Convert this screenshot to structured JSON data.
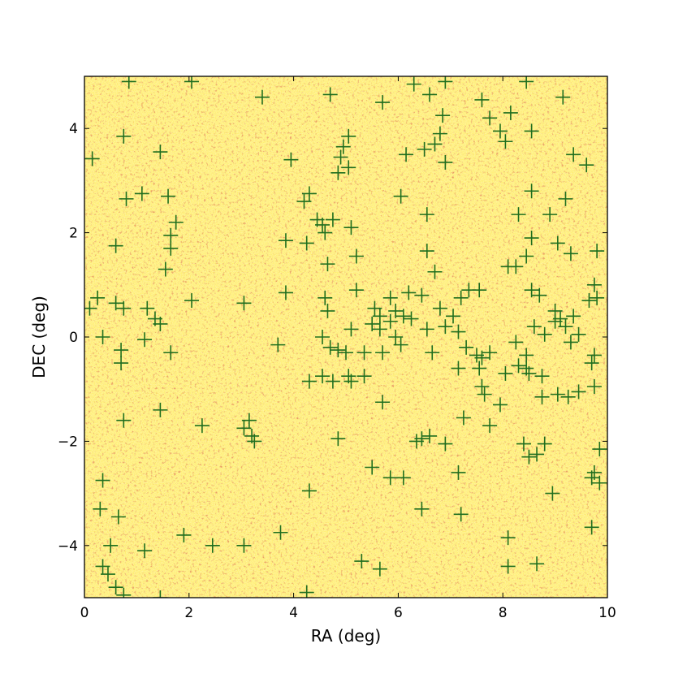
{
  "chart_data": {
    "type": "scatter",
    "title": "",
    "xlabel": "RA (deg)",
    "ylabel": "DEC (deg)",
    "xlim": [
      0,
      10
    ],
    "ylim": [
      -5,
      5
    ],
    "xticks": [
      0,
      2,
      4,
      6,
      8,
      10
    ],
    "xtick_labels": [
      "0",
      "2",
      "4",
      "6",
      "8",
      "10"
    ],
    "yticks": [
      -4,
      -2,
      0,
      2,
      4
    ],
    "ytick_labels": [
      "−4",
      "−2",
      "0",
      "2",
      "4"
    ],
    "grid": false,
    "legend": "none",
    "background": "density heatmap (yellow to red)",
    "colors": {
      "marker": "#1f6e1f",
      "heat_low": "#fff7b0",
      "heat_mid": "#ffd700",
      "heat_high": "#b22222"
    },
    "series": [
      {
        "marker": "plus",
        "points": [
          [
            0.15,
            3.42
          ],
          [
            0.75,
            3.85
          ],
          [
            1.45,
            3.55
          ],
          [
            0.85,
            4.9
          ],
          [
            2.05,
            4.9
          ],
          [
            3.4,
            4.6
          ],
          [
            4.7,
            4.65
          ],
          [
            5.7,
            4.5
          ],
          [
            6.3,
            4.85
          ],
          [
            6.6,
            4.65
          ],
          [
            6.9,
            4.9
          ],
          [
            7.6,
            4.55
          ],
          [
            7.75,
            4.2
          ],
          [
            8.15,
            4.3
          ],
          [
            8.05,
            3.75
          ],
          [
            7.95,
            3.95
          ],
          [
            8.55,
            3.95
          ],
          [
            8.45,
            4.9
          ],
          [
            9.15,
            4.6
          ],
          [
            6.85,
            4.25
          ],
          [
            6.8,
            3.9
          ],
          [
            6.7,
            3.7
          ],
          [
            6.5,
            3.6
          ],
          [
            6.15,
            3.5
          ],
          [
            6.9,
            3.35
          ],
          [
            5.05,
            3.85
          ],
          [
            4.95,
            3.65
          ],
          [
            4.9,
            3.45
          ],
          [
            4.85,
            3.15
          ],
          [
            5.05,
            3.25
          ],
          [
            3.95,
            3.4
          ],
          [
            9.35,
            3.5
          ],
          [
            9.6,
            3.3
          ],
          [
            0.8,
            2.65
          ],
          [
            1.1,
            2.75
          ],
          [
            1.6,
            2.7
          ],
          [
            1.75,
            2.2
          ],
          [
            1.65,
            1.95
          ],
          [
            1.65,
            1.7
          ],
          [
            0.6,
            1.75
          ],
          [
            1.55,
            1.3
          ],
          [
            4.2,
            2.6
          ],
          [
            4.3,
            2.75
          ],
          [
            4.45,
            2.25
          ],
          [
            4.55,
            2.15
          ],
          [
            4.6,
            2.0
          ],
          [
            4.75,
            2.25
          ],
          [
            5.1,
            2.1
          ],
          [
            5.2,
            1.55
          ],
          [
            4.25,
            1.8
          ],
          [
            3.85,
            1.85
          ],
          [
            4.65,
            1.4
          ],
          [
            6.05,
            2.7
          ],
          [
            6.55,
            2.35
          ],
          [
            6.55,
            1.65
          ],
          [
            6.7,
            1.25
          ],
          [
            8.3,
            2.35
          ],
          [
            8.55,
            2.8
          ],
          [
            8.9,
            2.35
          ],
          [
            9.2,
            2.65
          ],
          [
            8.55,
            1.9
          ],
          [
            9.05,
            1.8
          ],
          [
            9.3,
            1.6
          ],
          [
            9.8,
            1.65
          ],
          [
            8.45,
            1.55
          ],
          [
            0.1,
            0.55
          ],
          [
            0.25,
            0.75
          ],
          [
            0.6,
            0.65
          ],
          [
            0.75,
            0.55
          ],
          [
            1.2,
            0.55
          ],
          [
            1.35,
            0.35
          ],
          [
            1.45,
            0.25
          ],
          [
            2.05,
            0.7
          ],
          [
            3.05,
            0.65
          ],
          [
            3.85,
            0.85
          ],
          [
            4.6,
            0.75
          ],
          [
            4.65,
            0.5
          ],
          [
            5.2,
            0.9
          ],
          [
            5.55,
            0.55
          ],
          [
            5.65,
            0.4
          ],
          [
            5.85,
            0.75
          ],
          [
            5.95,
            0.5
          ],
          [
            6.1,
            0.4
          ],
          [
            6.2,
            0.85
          ],
          [
            6.25,
            0.35
          ],
          [
            6.45,
            0.8
          ],
          [
            6.8,
            0.55
          ],
          [
            7.2,
            0.75
          ],
          [
            7.35,
            0.9
          ],
          [
            7.55,
            0.9
          ],
          [
            8.1,
            1.35
          ],
          [
            8.25,
            1.35
          ],
          [
            8.55,
            0.9
          ],
          [
            8.7,
            0.8
          ],
          [
            9.0,
            0.5
          ],
          [
            9.1,
            0.35
          ],
          [
            9.35,
            0.4
          ],
          [
            9.75,
            1.0
          ],
          [
            9.8,
            0.75
          ],
          [
            9.65,
            0.7
          ],
          [
            0.35,
            0.0
          ],
          [
            0.7,
            -0.25
          ],
          [
            0.7,
            -0.5
          ],
          [
            1.15,
            -0.05
          ],
          [
            1.65,
            -0.3
          ],
          [
            3.7,
            -0.15
          ],
          [
            4.55,
            0.0
          ],
          [
            4.7,
            -0.2
          ],
          [
            4.85,
            -0.25
          ],
          [
            5.0,
            -0.3
          ],
          [
            5.1,
            0.15
          ],
          [
            5.5,
            0.25
          ],
          [
            5.65,
            0.15
          ],
          [
            5.85,
            0.3
          ],
          [
            5.95,
            0.0
          ],
          [
            6.05,
            -0.15
          ],
          [
            6.55,
            0.15
          ],
          [
            6.65,
            -0.3
          ],
          [
            6.9,
            0.2
          ],
          [
            7.05,
            0.4
          ],
          [
            7.15,
            0.1
          ],
          [
            7.3,
            -0.2
          ],
          [
            7.5,
            -0.35
          ],
          [
            7.6,
            -0.4
          ],
          [
            7.75,
            -0.3
          ],
          [
            8.25,
            -0.1
          ],
          [
            8.45,
            -0.35
          ],
          [
            8.45,
            -0.6
          ],
          [
            8.6,
            0.2
          ],
          [
            8.8,
            0.05
          ],
          [
            9.0,
            0.3
          ],
          [
            9.2,
            0.2
          ],
          [
            9.3,
            -0.1
          ],
          [
            9.45,
            0.05
          ],
          [
            9.75,
            -0.35
          ],
          [
            9.7,
            -0.5
          ],
          [
            5.35,
            -0.3
          ],
          [
            5.7,
            -0.3
          ],
          [
            4.3,
            -0.85
          ],
          [
            4.55,
            -0.75
          ],
          [
            4.75,
            -0.85
          ],
          [
            5.05,
            -0.75
          ],
          [
            5.1,
            -0.85
          ],
          [
            5.35,
            -0.75
          ],
          [
            5.7,
            -1.25
          ],
          [
            7.15,
            -0.6
          ],
          [
            7.55,
            -0.6
          ],
          [
            7.6,
            -0.95
          ],
          [
            7.65,
            -1.1
          ],
          [
            8.05,
            -0.7
          ],
          [
            8.3,
            -0.55
          ],
          [
            8.5,
            -0.7
          ],
          [
            8.75,
            -0.75
          ],
          [
            8.75,
            -1.15
          ],
          [
            9.05,
            -1.1
          ],
          [
            9.25,
            -1.15
          ],
          [
            9.45,
            -1.05
          ],
          [
            9.75,
            -0.95
          ],
          [
            7.95,
            -1.3
          ],
          [
            7.25,
            -1.55
          ],
          [
            7.75,
            -1.7
          ],
          [
            0.75,
            -1.6
          ],
          [
            1.45,
            -1.4
          ],
          [
            2.25,
            -1.7
          ],
          [
            3.05,
            -1.75
          ],
          [
            3.15,
            -1.6
          ],
          [
            3.2,
            -1.9
          ],
          [
            3.25,
            -2.0
          ],
          [
            4.85,
            -1.95
          ],
          [
            6.35,
            -2.0
          ],
          [
            6.45,
            -1.95
          ],
          [
            6.6,
            -1.9
          ],
          [
            6.9,
            -2.05
          ],
          [
            8.4,
            -2.05
          ],
          [
            8.65,
            -2.25
          ],
          [
            8.8,
            -2.05
          ],
          [
            9.85,
            -2.15
          ],
          [
            8.5,
            -2.3
          ],
          [
            0.35,
            -2.75
          ],
          [
            0.3,
            -3.3
          ],
          [
            0.65,
            -3.45
          ],
          [
            4.3,
            -2.95
          ],
          [
            5.5,
            -2.5
          ],
          [
            5.85,
            -2.7
          ],
          [
            6.1,
            -2.7
          ],
          [
            6.45,
            -3.3
          ],
          [
            7.15,
            -2.6
          ],
          [
            7.2,
            -3.4
          ],
          [
            8.95,
            -3.0
          ],
          [
            9.7,
            -2.7
          ],
          [
            9.75,
            -2.6
          ],
          [
            9.85,
            -2.8
          ],
          [
            0.5,
            -4.0
          ],
          [
            0.35,
            -4.4
          ],
          [
            0.45,
            -4.55
          ],
          [
            0.6,
            -4.8
          ],
          [
            0.75,
            -4.95
          ],
          [
            1.15,
            -4.1
          ],
          [
            1.9,
            -3.8
          ],
          [
            2.45,
            -4.0
          ],
          [
            3.05,
            -4.0
          ],
          [
            3.75,
            -3.75
          ],
          [
            4.25,
            -4.9
          ],
          [
            5.3,
            -4.3
          ],
          [
            5.65,
            -4.45
          ],
          [
            8.1,
            -3.85
          ],
          [
            8.1,
            -4.4
          ],
          [
            8.65,
            -4.35
          ],
          [
            9.7,
            -3.65
          ],
          [
            1.45,
            -5.0
          ]
        ]
      }
    ]
  }
}
